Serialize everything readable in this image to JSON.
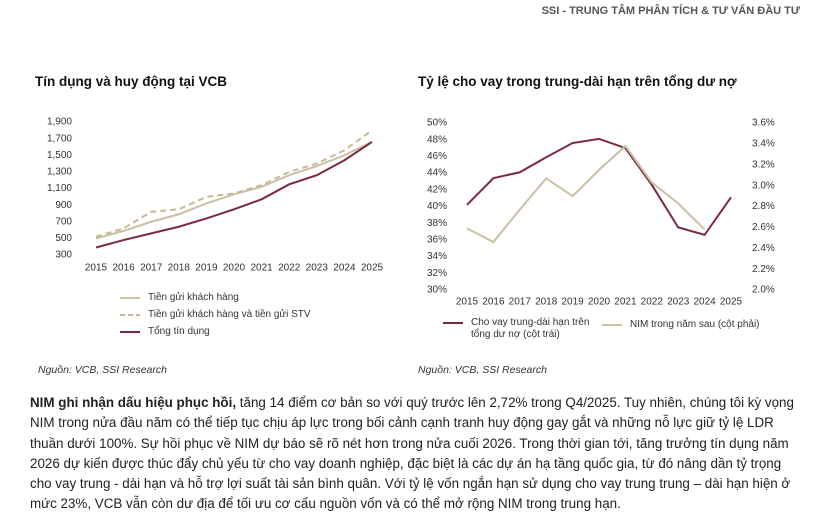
{
  "header": "SSI - TRUNG TÂM PHÂN TÍCH & TƯ VẤN ĐẦU TƯ",
  "chart_data": [
    {
      "type": "line",
      "title": "Tín dụng và huy động tại VCB",
      "categories": [
        "2015",
        "2016",
        "2017",
        "2018",
        "2019",
        "2020",
        "2021",
        "2022",
        "2023",
        "2024",
        "2025"
      ],
      "ylim": [
        300,
        1900
      ],
      "yticks": [
        300,
        500,
        700,
        900,
        {
          "value": 1100,
          "label": "1,100"
        },
        {
          "value": 1300,
          "label": "1,300"
        },
        {
          "value": 1500,
          "label": "1,500"
        },
        {
          "value": 1700,
          "label": "1,700"
        },
        {
          "value": 1900,
          "label": "1,900"
        }
      ],
      "grid": false,
      "series": [
        {
          "name": "Tiền gửi khách hàng",
          "color": "#cbbfa4",
          "dashed": false,
          "values": [
            500,
            590,
            700,
            790,
            920,
            1030,
            1120,
            1260,
            1370,
            1500,
            1660
          ]
        },
        {
          "name": "Tiền gửi khách hàng và tiền gửi STV",
          "color": "#c8b898",
          "dashed": true,
          "values": [
            520,
            620,
            820,
            850,
            1000,
            1040,
            1140,
            1300,
            1400,
            1560,
            1800
          ]
        },
        {
          "name": "Tổng tín dụng",
          "color": "#7a2a3c",
          "dashed": false,
          "values": [
            390,
            480,
            560,
            640,
            740,
            850,
            970,
            1150,
            1260,
            1440,
            1660
          ]
        }
      ]
    },
    {
      "type": "line",
      "title": "Tỷ lệ cho vay trong trung-dài hạn trên tổng dư nợ",
      "categories": [
        "2015",
        "2016",
        "2017",
        "2018",
        "2019",
        "2020",
        "2021",
        "2022",
        "2023",
        "2024",
        "2025"
      ],
      "ylim": [
        30,
        50
      ],
      "yticks": [
        {
          "value": 30,
          "label": "30%"
        },
        {
          "value": 32,
          "label": "32%"
        },
        {
          "value": 34,
          "label": "34%"
        },
        {
          "value": 36,
          "label": "36%"
        },
        {
          "value": 38,
          "label": "38%"
        },
        {
          "value": 40,
          "label": "40%"
        },
        {
          "value": 42,
          "label": "42%"
        },
        {
          "value": 44,
          "label": "44%"
        },
        {
          "value": 46,
          "label": "46%"
        },
        {
          "value": 48,
          "label": "48%"
        },
        {
          "value": 50,
          "label": "50%"
        }
      ],
      "y2lim": [
        2.0,
        3.6
      ],
      "y2ticks": [
        {
          "value": 2.0,
          "label": "2.0%"
        },
        {
          "value": 2.2,
          "label": "2.2%"
        },
        {
          "value": 2.4,
          "label": "2.4%"
        },
        {
          "value": 2.6,
          "label": "2.6%"
        },
        {
          "value": 2.8,
          "label": "2.8%"
        },
        {
          "value": 3.0,
          "label": "3.0%"
        },
        {
          "value": 3.2,
          "label": "3.2%"
        },
        {
          "value": 3.4,
          "label": "3.4%"
        },
        {
          "value": 3.6,
          "label": "3.6%"
        }
      ],
      "grid": false,
      "series": [
        {
          "name": "Cho vay trung-dài hạn trên tổng dư nợ (cột trái)",
          "color": "#7a2a3c",
          "dashed": false,
          "values": [
            40.2,
            43.4,
            44.1,
            45.9,
            47.6,
            48.1,
            47.0,
            42.6,
            37.5,
            36.6,
            41.1
          ]
        },
        {
          "name": "NIM trong năm sau (cột phải)",
          "color": "#cbbfa4",
          "dashed": false,
          "axis": "y2",
          "values": [
            2.59,
            2.46,
            2.77,
            3.07,
            2.9,
            3.15,
            3.38,
            3.03,
            2.83,
            2.58,
            null
          ]
        }
      ]
    }
  ],
  "sources": [
    "Nguồn: VCB, SSI Research",
    "Nguồn: VCB, SSI Research"
  ],
  "paragraph": {
    "lead": "NIM ghi nhận dấu hiệu phục hồi,",
    "text": "tăng 14 điểm cơ bản so với quý trước lên 2,72% trong Q4/2025. Tuy nhiên, chúng tôi kỳ vọng NIM trong nửa đầu năm có thể tiếp tục chịu áp lực trong bối cảnh cạnh tranh huy động gay gắt và những nỗ lực giữ tỷ lệ LDR thuần dưới 100%. Sự hồi phục về NIM dự báo sẽ rõ nét hơn trong nửa cuối 2026. Trong thời gian tới, tăng trưởng tín dụng năm 2026 dự kiến được thúc đẩy chủ yếu từ cho vay doanh nghiệp, đặc biệt là các dự án hạ tầng quốc gia, từ đó nâng dần tỷ trọng cho vay trung - dài hạn và hỗ trợ lợi suất tài sản bình quân. Với tỷ lệ vốn ngắn hạn sử dụng cho vay trung trung – dài hạn hiện ở mức 23%, VCB vẫn còn dư địa để tối ưu cơ cấu nguồn vốn và có thể mở rộng NIM trong trung hạn."
  }
}
